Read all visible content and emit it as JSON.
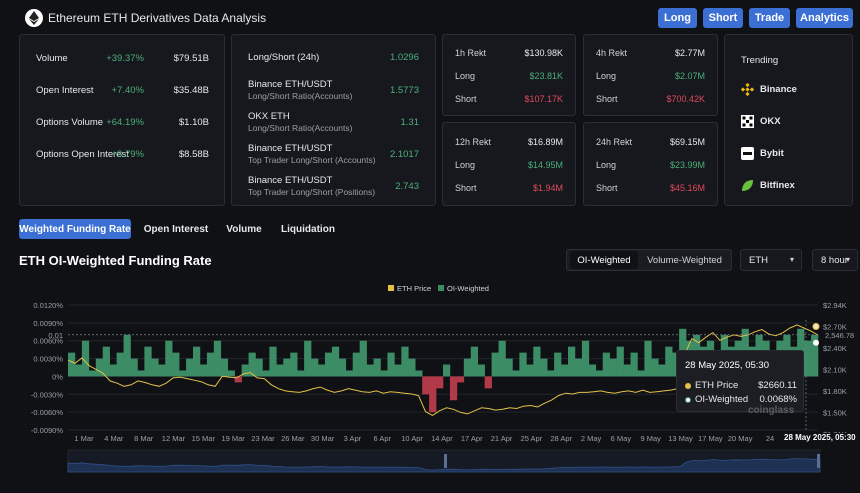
{
  "header": {
    "title": "Ethereum ETH Derivatives Data Analysis",
    "buttons": [
      "Long",
      "Short",
      "Trade",
      "Analytics"
    ]
  },
  "summary": [
    {
      "label": "Volume",
      "change": "+39.37%",
      "value": "$79.51B"
    },
    {
      "label": "Open Interest",
      "change": "+7.40%",
      "value": "$35.48B"
    },
    {
      "label": "Options Volume",
      "change": "+64.19%",
      "value": "$1.10B"
    },
    {
      "label": "Options Open Interest",
      "change": "+3.79%",
      "value": "$8.58B"
    }
  ],
  "long_short": [
    {
      "title": "Long/Short (24h)",
      "sub": "",
      "value": "1.0296"
    },
    {
      "title": "Binance ETH/USDT",
      "sub": "Long/Short Ratio(Accounts)",
      "value": "1.5773"
    },
    {
      "title": "OKX ETH",
      "sub": "Long/Short Ratio(Accounts)",
      "value": "1.31"
    },
    {
      "title": "Binance ETH/USDT",
      "sub": "Top Trader Long/Short (Accounts)",
      "value": "2.1017"
    },
    {
      "title": "Binance ETH/USDT",
      "sub": "Top Trader Long/Short (Positions)",
      "value": "2.743"
    }
  ],
  "rekt": [
    {
      "period": "1h Rekt",
      "total": "$130.98K",
      "long_label": "Long",
      "long": "$23.81K",
      "short_label": "Short",
      "short": "$107.17K"
    },
    {
      "period": "4h Rekt",
      "total": "$2.77M",
      "long_label": "Long",
      "long": "$2.07M",
      "short_label": "Short",
      "short": "$700.42K"
    },
    {
      "period": "12h Rekt",
      "total": "$16.89M",
      "long_label": "Long",
      "long": "$14.95M",
      "short_label": "Short",
      "short": "$1.94M"
    },
    {
      "period": "24h Rekt",
      "total": "$69.15M",
      "long_label": "Long",
      "long": "$23.99M",
      "short_label": "Short",
      "short": "$45.16M"
    }
  ],
  "trending": {
    "heading": "Trending",
    "items": [
      "Binance",
      "OKX",
      "Bybit",
      "Bitfinex"
    ]
  },
  "tabs": [
    "Weighted Funding Rate",
    "Open Interest",
    "Volume",
    "Liquidation"
  ],
  "section_title": "ETH OI-Weighted Funding Rate",
  "controls": {
    "segments": [
      "OI-Weighted",
      "Volume-Weighted"
    ],
    "coin": "ETH",
    "interval": "8 hour"
  },
  "chart_data": {
    "type": "area",
    "legend": [
      "ETH Price",
      "OI-Weighted"
    ],
    "colors": {
      "price": "#e5c14a",
      "positive": "#3c8c66",
      "negative": "#b23a48"
    },
    "y_left_ticks": [
      "0.0120%",
      "0.0090%",
      "0.0060%",
      "0.0030%",
      "0%",
      "-0.0030%",
      "-0.0060%",
      "-0.0090%"
    ],
    "y_right_ticks": [
      "$2.94K",
      "$2.70K",
      "$2.40K",
      "$2.10K",
      "$1.80K",
      "$1.50K",
      "$1.31K"
    ],
    "x_ticks": [
      "1 Mar",
      "4 Mar",
      "8 Mar",
      "12 Mar",
      "15 Mar",
      "19 Mar",
      "23 Mar",
      "26 Mar",
      "30 Mar",
      "3 Apr",
      "6 Apr",
      "10 Apr",
      "14 Apr",
      "17 Apr",
      "21 Apr",
      "25 Apr",
      "28 Apr",
      "2 May",
      "6 May",
      "9 May",
      "13 May",
      "17 May",
      "20 May",
      "24"
    ],
    "ylim_rate": [
      -0.009,
      0.012
    ],
    "ylim_price": [
      1310,
      2940
    ],
    "current_rate_label": "0.01",
    "current_price_label": "2,546.78",
    "rate_series": [
      0.004,
      0.002,
      0.006,
      0.001,
      0.003,
      0.005,
      0.002,
      0.004,
      0.007,
      0.003,
      0.001,
      0.005,
      0.003,
      0.002,
      0.006,
      0.004,
      0.001,
      0.003,
      0.005,
      0.002,
      0.004,
      0.006,
      0.003,
      0.001,
      -0.001,
      0.002,
      0.004,
      0.003,
      0.001,
      0.005,
      0.002,
      0.003,
      0.004,
      0.001,
      0.006,
      0.003,
      0.002,
      0.004,
      0.005,
      0.003,
      0.001,
      0.004,
      0.006,
      0.002,
      0.003,
      0.001,
      0.004,
      0.002,
      0.005,
      0.003,
      0.001,
      -0.003,
      -0.006,
      -0.002,
      0.002,
      -0.004,
      -0.001,
      0.003,
      0.005,
      0.002,
      -0.002,
      0.004,
      0.006,
      0.003,
      0.001,
      0.004,
      0.002,
      0.005,
      0.003,
      0.001,
      0.004,
      0.002,
      0.005,
      0.003,
      0.006,
      0.002,
      0.001,
      0.004,
      0.003,
      0.005,
      0.002,
      0.004,
      0.001,
      0.006,
      0.003,
      0.002,
      0.005,
      0.004,
      0.008,
      0.006,
      0.007,
      0.005,
      0.006,
      0.004,
      0.007,
      0.005,
      0.006,
      0.008,
      0.005,
      0.007,
      0.006,
      0.004,
      0.006,
      0.007,
      0.005,
      0.008,
      0.006,
      0.007
    ],
    "price_series": [
      2220,
      2180,
      2250,
      2150,
      2100,
      2050,
      1950,
      1920,
      1880,
      1900,
      1950,
      1930,
      1900,
      1880,
      1920,
      1990,
      2000,
      1980,
      1960,
      1940,
      1900,
      1880,
      2010,
      2000,
      1990,
      2040,
      2060,
      1990,
      1980,
      1900,
      1850,
      1820,
      1810,
      1800,
      1820,
      1850,
      1870,
      1830,
      1800,
      1820,
      1850,
      1830,
      1810,
      1800,
      1820,
      1790,
      1810,
      1800,
      1790,
      1780,
      1760,
      1550,
      1500,
      1560,
      1600,
      1580,
      1540,
      1520,
      1560,
      1600,
      1590,
      1570,
      1580,
      1600,
      1590,
      1620,
      1630,
      1610,
      1660,
      1700,
      1760,
      1790,
      1780,
      1800,
      1800,
      1810,
      1820,
      1800,
      1790,
      1810,
      1820,
      1800,
      1830,
      1800,
      1810,
      1820,
      1830,
      1850,
      2300,
      2500,
      2450,
      2520,
      2580,
      2480,
      2520,
      2550,
      2530,
      2550,
      2590,
      2620,
      2560,
      2540,
      2580,
      2640,
      2680,
      2640,
      2600,
      2547
    ]
  },
  "tooltip": {
    "date": "28 May 2025, 05:30",
    "price_label": "ETH Price",
    "price_value": "$2660.11",
    "rate_label": "OI-Weighted",
    "rate_value": "0.0068%"
  },
  "watermark": "coinglass",
  "x_last_label": "28 May 2025, 05:30"
}
